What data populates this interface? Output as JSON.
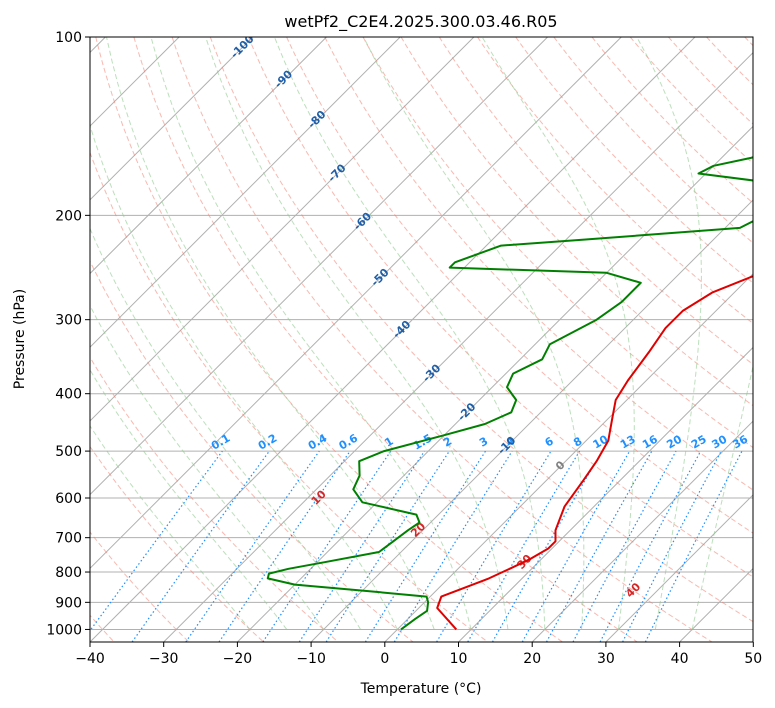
{
  "chart_data": {
    "type": "line",
    "subtype": "skew-t log-p sounding",
    "title": "wetPf2_C2E4.2025.300.03.46.R05",
    "xlabel": "Temperature (°C)",
    "ylabel": "Pressure (hPa)",
    "xlim": [
      -40,
      50
    ],
    "ylim": [
      1050,
      100
    ],
    "y_scale": "log",
    "grid": true,
    "x_ticks": [
      -40,
      -30,
      -20,
      -10,
      0,
      10,
      20,
      30,
      40,
      50
    ],
    "y_ticks": [
      100,
      200,
      300,
      400,
      500,
      600,
      700,
      800,
      900,
      1000
    ],
    "series": [
      {
        "color": "#e00000",
        "points": [
          [
            8,
            1000
          ],
          [
            2.5,
            920
          ],
          [
            1.5,
            880
          ],
          [
            3.5,
            850
          ],
          [
            5.5,
            820
          ],
          [
            7,
            790
          ],
          [
            8.5,
            760
          ],
          [
            9.5,
            730
          ],
          [
            9.5,
            710
          ],
          [
            8,
            680
          ],
          [
            6,
            620
          ],
          [
            5,
            560
          ],
          [
            4.2,
            520
          ],
          [
            3,
            480
          ],
          [
            0.5,
            440
          ],
          [
            -1.5,
            410
          ],
          [
            -2.5,
            380
          ],
          [
            -3.5,
            340
          ],
          [
            -4.5,
            310
          ],
          [
            -4.5,
            290
          ],
          [
            -3,
            270
          ],
          [
            1,
            250
          ],
          [
            4.5,
            235
          ],
          [
            7,
            225
          ],
          [
            7.5,
            210
          ],
          [
            7,
            200
          ],
          [
            7.5,
            190
          ],
          [
            10,
            180
          ],
          [
            13,
            170
          ],
          [
            16,
            160
          ],
          [
            18,
            150
          ],
          [
            19,
            140
          ],
          [
            19.5,
            130
          ],
          [
            20.5,
            120
          ],
          [
            23,
            112
          ],
          [
            25,
            106
          ],
          [
            25.5,
            100
          ]
        ]
      },
      {
        "color": "#008000",
        "points": [
          [
            0.5,
            1000
          ],
          [
            1,
            960
          ],
          [
            1.5,
            930
          ],
          [
            0.5,
            900
          ],
          [
            -0.5,
            880
          ],
          [
            -10,
            860
          ],
          [
            -20,
            840
          ],
          [
            -24.5,
            820
          ],
          [
            -25,
            805
          ],
          [
            -23,
            790
          ],
          [
            -19,
            770
          ],
          [
            -13,
            740
          ],
          [
            -12.5,
            710
          ],
          [
            -12,
            680
          ],
          [
            -11.5,
            660
          ],
          [
            -13,
            640
          ],
          [
            -22,
            610
          ],
          [
            -25,
            580
          ],
          [
            -26,
            550
          ],
          [
            -28,
            520
          ],
          [
            -26,
            500
          ],
          [
            -20,
            470
          ],
          [
            -16,
            450
          ],
          [
            -14,
            430
          ],
          [
            -15,
            410
          ],
          [
            -18,
            390
          ],
          [
            -19,
            370
          ],
          [
            -17,
            350
          ],
          [
            -18,
            330
          ],
          [
            -15,
            300
          ],
          [
            -14,
            280
          ],
          [
            -14,
            260
          ],
          [
            -20,
            250
          ],
          [
            -42,
            245
          ],
          [
            -42,
            240
          ],
          [
            -38,
            225
          ],
          [
            -28,
            220
          ],
          [
            -8,
            210
          ],
          [
            -5.5,
            195
          ],
          [
            -7,
            185
          ],
          [
            -12,
            175
          ],
          [
            -21,
            170
          ],
          [
            -20,
            165
          ],
          [
            -16,
            160
          ],
          [
            -12,
            150
          ],
          [
            -9,
            140
          ],
          [
            -6,
            120
          ],
          [
            -4.5,
            110
          ],
          [
            0,
            100
          ]
        ]
      }
    ],
    "background_line_labels": {
      "isotherm_labels": [
        "-100",
        "-90",
        "-80",
        "-70",
        "-60",
        "-50",
        "-40",
        "-30",
        "-20",
        "-10",
        "0"
      ],
      "dry_adiabat_labels": [
        "10",
        "20",
        "30",
        "40"
      ],
      "mixing_ratio_labels": [
        "0.1",
        "0.2",
        "0.4",
        "0.6",
        "1",
        "1.5",
        "2",
        "3",
        "4",
        "6",
        "8",
        "10",
        "13",
        "16",
        "20",
        "25",
        "30",
        "36"
      ]
    },
    "colors": {
      "temperature": "#e00000",
      "dewpoint": "#008000",
      "isotherm": "#888888",
      "isotherm_label_cold": "#1f5fa8",
      "dry_adiabat": "#f08070",
      "dry_adiabat_label": "#d62728",
      "moist_adiabat": "#8fca8f",
      "mixing_ratio": "#1e90ff",
      "mixing_ratio_label": "#1e90ff"
    }
  }
}
